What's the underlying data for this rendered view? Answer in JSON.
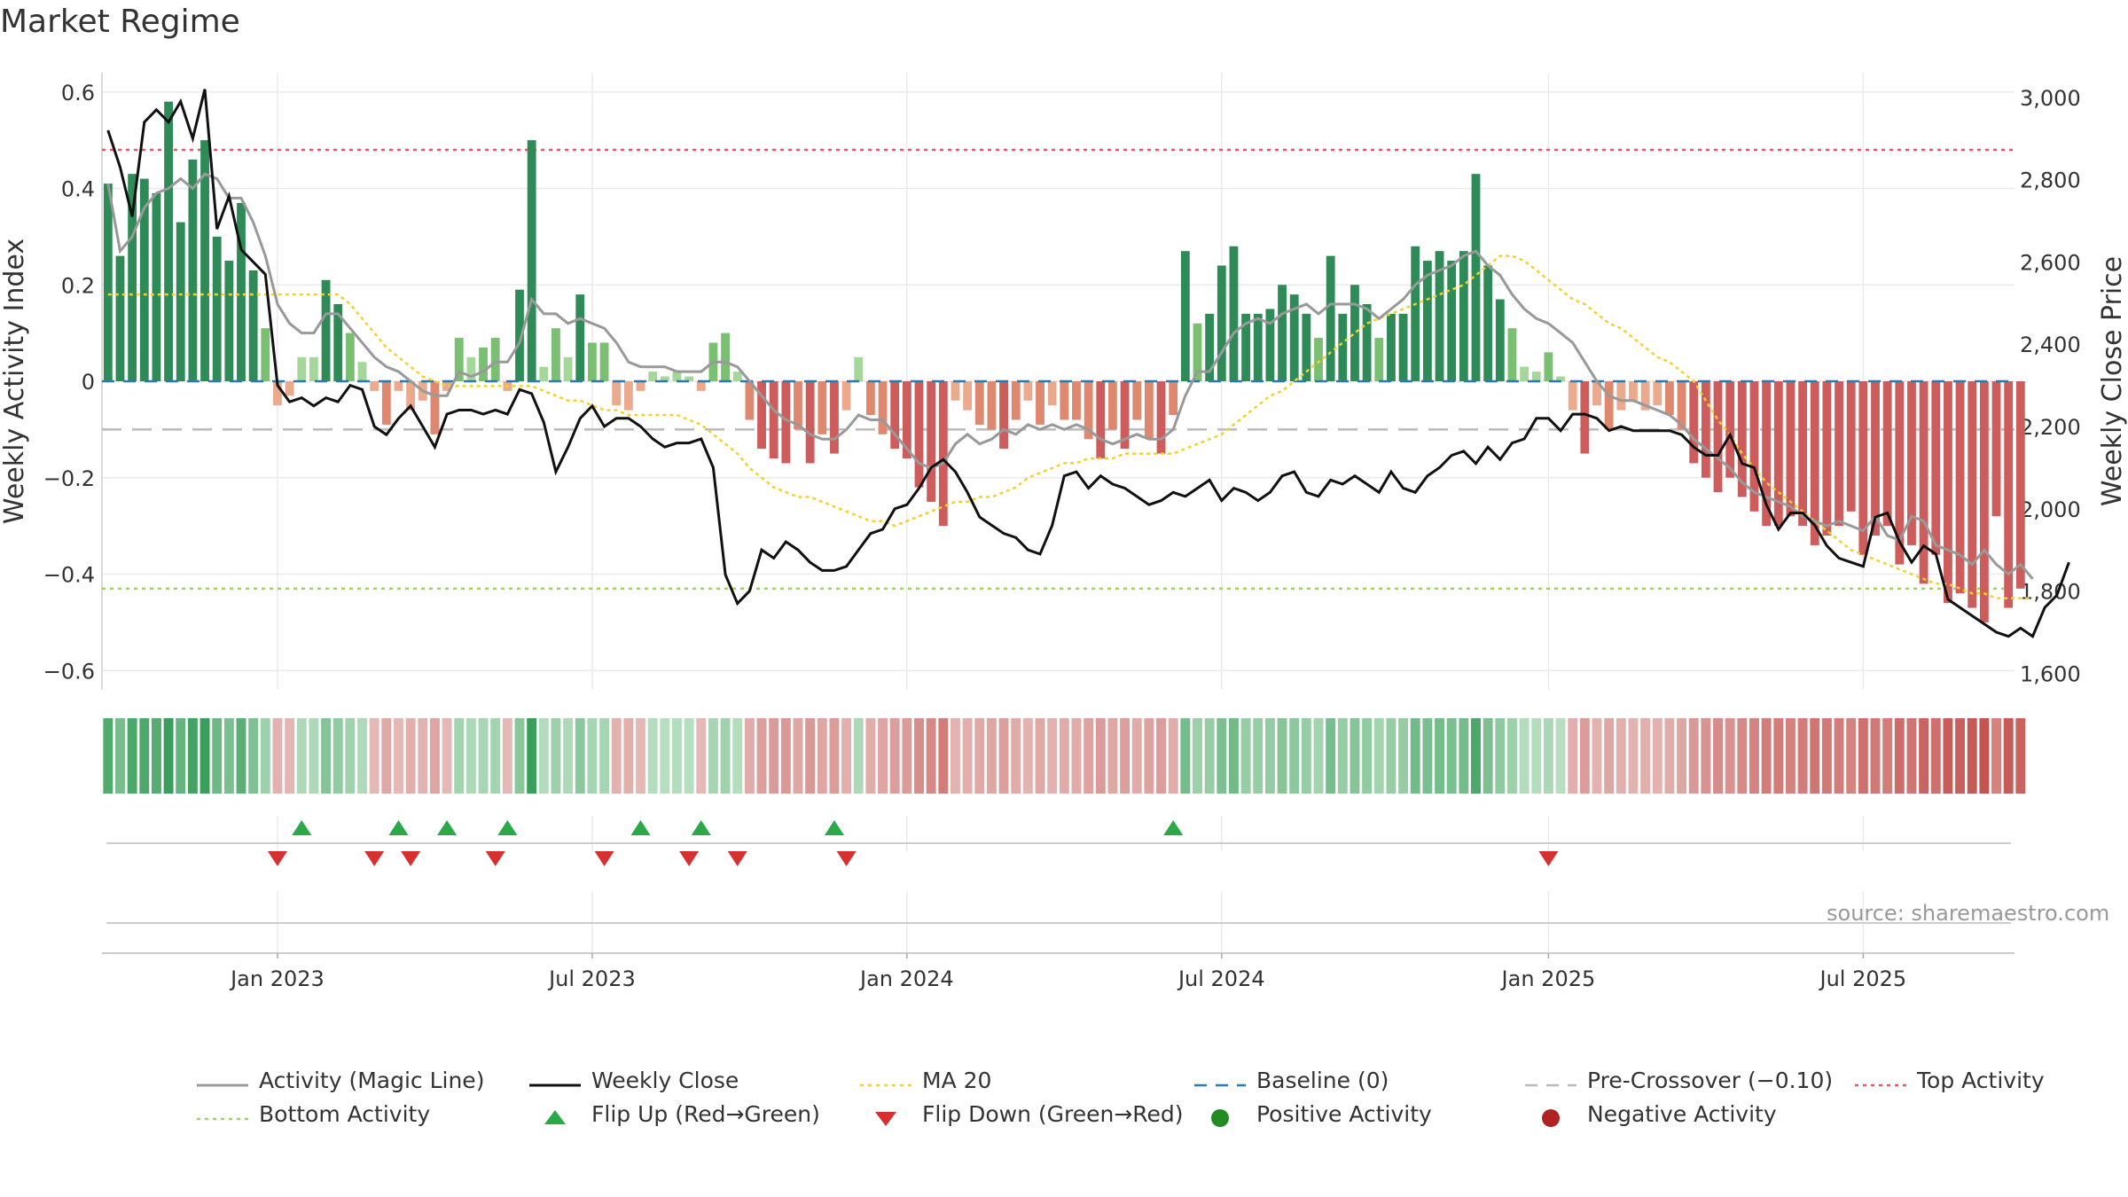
{
  "title": "Market Regime",
  "source": "source: sharemaestro.com",
  "chart_data": {
    "type": "bar",
    "left_axis": {
      "label": "Weekly Activity Index",
      "ylim": [
        -0.64,
        0.64
      ],
      "ticks": [
        0.6,
        0.4,
        0.2,
        0,
        -0.2,
        -0.4,
        -0.6
      ],
      "tick_labels": [
        "0.6",
        "0.4",
        "0.2",
        "0",
        "−0.2",
        "−0.4",
        "−0.6"
      ]
    },
    "right_axis": {
      "label": "Weekly Close Price",
      "ylim": [
        1560,
        3060
      ],
      "ticks": [
        3000,
        2800,
        2600,
        2400,
        2200,
        2000,
        1800,
        1600
      ],
      "tick_labels": [
        "3,000",
        "2,800",
        "2,600",
        "2,400",
        "2,200",
        "2,000",
        "1,800",
        "1,600"
      ]
    },
    "x_axis": {
      "start": "2022-09-26",
      "weeks": 158,
      "ticks": [
        "2023-01-02",
        "2023-07-03",
        "2024-01-01",
        "2024-07-01",
        "2025-01-06",
        "2025-07-07"
      ],
      "tick_labels": [
        "Jan 2023",
        "Jul 2023",
        "Jan 2024",
        "Jul 2024",
        "Jan 2025",
        "Jul 2025"
      ]
    },
    "grid": true,
    "reference_lines": {
      "top_activity": 0.48,
      "bottom_activity": -0.43,
      "pre_crossover": -0.1,
      "baseline": 0
    },
    "activity": [
      0.41,
      0.26,
      0.43,
      0.42,
      0.39,
      0.58,
      0.33,
      0.46,
      0.5,
      0.3,
      0.25,
      0.37,
      0.23,
      0.11,
      -0.05,
      -0.03,
      0.05,
      0.05,
      0.21,
      0.16,
      0.1,
      0.04,
      -0.02,
      -0.09,
      -0.02,
      -0.06,
      -0.04,
      -0.11,
      -0.02,
      0.09,
      0.05,
      0.07,
      0.09,
      -0.02,
      0.19,
      0.5,
      0.03,
      0.11,
      0.05,
      0.18,
      0.08,
      0.08,
      -0.05,
      -0.06,
      -0.02,
      0.02,
      0.01,
      0.02,
      0.01,
      -0.02,
      0.08,
      0.1,
      0.02,
      -0.08,
      -0.14,
      -0.16,
      -0.17,
      -0.1,
      -0.17,
      -0.11,
      -0.15,
      -0.06,
      0.05,
      -0.07,
      -0.11,
      -0.14,
      -0.16,
      -0.22,
      -0.25,
      -0.3,
      -0.04,
      -0.06,
      -0.09,
      -0.1,
      -0.14,
      -0.08,
      -0.04,
      -0.09,
      -0.05,
      -0.08,
      -0.08,
      -0.12,
      -0.16,
      -0.1,
      -0.14,
      -0.08,
      -0.12,
      -0.15,
      -0.07,
      0.27,
      0.12,
      0.14,
      0.24,
      0.28,
      0.14,
      0.14,
      0.15,
      0.2,
      0.18,
      0.14,
      0.09,
      0.26,
      0.14,
      0.2,
      0.16,
      0.09,
      0.14,
      0.14,
      0.28,
      0.25,
      0.27,
      0.25,
      0.27,
      0.43,
      0.24,
      0.17,
      0.11,
      0.03,
      0.02,
      0.06,
      0.01,
      -0.06,
      -0.15,
      -0.05,
      -0.1,
      -0.06,
      -0.04,
      -0.06,
      -0.05,
      -0.07,
      -0.1,
      -0.17,
      -0.2,
      -0.23,
      -0.2,
      -0.24,
      -0.27,
      -0.3,
      -0.3,
      -0.28,
      -0.3,
      -0.34,
      -0.32,
      -0.3,
      -0.27,
      -0.36,
      -0.32,
      -0.3,
      -0.38,
      -0.34,
      -0.42,
      -0.36,
      -0.46,
      -0.44,
      -0.47,
      -0.5,
      -0.28,
      -0.47,
      -0.43
    ],
    "magic_line": [
      0.41,
      0.27,
      0.3,
      0.36,
      0.39,
      0.4,
      0.42,
      0.4,
      0.43,
      0.42,
      0.38,
      0.38,
      0.33,
      0.26,
      0.16,
      0.12,
      0.1,
      0.1,
      0.14,
      0.14,
      0.11,
      0.08,
      0.05,
      0.03,
      0.02,
      0.0,
      -0.02,
      -0.03,
      -0.03,
      0.02,
      0.01,
      0.02,
      0.04,
      0.04,
      0.08,
      0.17,
      0.14,
      0.14,
      0.12,
      0.13,
      0.12,
      0.11,
      0.08,
      0.04,
      0.03,
      0.03,
      0.03,
      0.02,
      0.02,
      0.02,
      0.04,
      0.04,
      0.03,
      0.0,
      -0.03,
      -0.06,
      -0.08,
      -0.09,
      -0.11,
      -0.12,
      -0.12,
      -0.1,
      -0.07,
      -0.08,
      -0.08,
      -0.11,
      -0.14,
      -0.17,
      -0.18,
      -0.17,
      -0.13,
      -0.11,
      -0.13,
      -0.12,
      -0.1,
      -0.11,
      -0.09,
      -0.1,
      -0.09,
      -0.1,
      -0.09,
      -0.1,
      -0.12,
      -0.13,
      -0.12,
      -0.11,
      -0.12,
      -0.12,
      -0.1,
      -0.03,
      0.02,
      0.02,
      0.06,
      0.1,
      0.12,
      0.13,
      0.12,
      0.14,
      0.15,
      0.16,
      0.14,
      0.16,
      0.16,
      0.16,
      0.15,
      0.13,
      0.15,
      0.17,
      0.2,
      0.22,
      0.23,
      0.24,
      0.26,
      0.27,
      0.24,
      0.22,
      0.18,
      0.15,
      0.13,
      0.12,
      0.1,
      0.08,
      0.04,
      0.0,
      -0.03,
      -0.04,
      -0.04,
      -0.05,
      -0.06,
      -0.07,
      -0.09,
      -0.12,
      -0.14,
      -0.16,
      -0.18,
      -0.21,
      -0.23,
      -0.24,
      -0.25,
      -0.26,
      -0.28,
      -0.29,
      -0.3,
      -0.29,
      -0.3,
      -0.31,
      -0.28,
      -0.32,
      -0.33,
      -0.28,
      -0.29,
      -0.34,
      -0.35,
      -0.36,
      -0.38,
      -0.35,
      -0.38,
      -0.4,
      -0.38,
      -0.41
    ],
    "weekly_close": [
      2920,
      2830,
      2710,
      2940,
      2970,
      2940,
      2990,
      2900,
      3020,
      2680,
      2760,
      2630,
      2600,
      2570,
      2300,
      2260,
      2270,
      2250,
      2270,
      2260,
      2300,
      2290,
      2200,
      2180,
      2220,
      2250,
      2200,
      2150,
      2230,
      2240,
      2240,
      2230,
      2240,
      2230,
      2290,
      2280,
      2210,
      2090,
      2150,
      2220,
      2250,
      2200,
      2220,
      2220,
      2200,
      2170,
      2150,
      2160,
      2160,
      2170,
      2100,
      1840,
      1770,
      1800,
      1900,
      1880,
      1920,
      1900,
      1870,
      1850,
      1850,
      1860,
      1900,
      1940,
      1950,
      2000,
      2010,
      2050,
      2100,
      2120,
      2090,
      2040,
      1980,
      1960,
      1940,
      1930,
      1900,
      1890,
      1960,
      2080,
      2090,
      2050,
      2080,
      2060,
      2050,
      2030,
      2010,
      2020,
      2040,
      2030,
      2050,
      2070,
      2020,
      2050,
      2040,
      2020,
      2040,
      2080,
      2090,
      2040,
      2030,
      2070,
      2060,
      2080,
      2060,
      2040,
      2090,
      2050,
      2040,
      2080,
      2100,
      2130,
      2140,
      2110,
      2150,
      2120,
      2160,
      2170,
      2220,
      2220,
      2190,
      2230,
      2230,
      2220,
      2190,
      2200,
      2190,
      2190,
      2190,
      2190,
      2180,
      2150,
      2130,
      2130,
      2180,
      2110,
      2100,
      2010,
      1950,
      1990,
      1990,
      1960,
      1910,
      1880,
      1870,
      1860,
      1980,
      1990,
      1920,
      1870,
      1910,
      1890,
      1780,
      1760,
      1740,
      1720,
      1700,
      1690,
      1710,
      1690,
      1760,
      1790,
      1870
    ],
    "ma20": [
      0.18,
      0.18,
      0.18,
      0.18,
      0.18,
      0.18,
      0.18,
      0.18,
      0.18,
      0.18,
      0.18,
      0.18,
      0.18,
      0.18,
      0.18,
      0.18,
      0.18,
      0.18,
      0.18,
      0.18,
      0.16,
      0.13,
      0.1,
      0.07,
      0.05,
      0.03,
      0.01,
      0.0,
      -0.01,
      -0.01,
      -0.01,
      -0.01,
      -0.01,
      -0.01,
      -0.01,
      -0.01,
      -0.02,
      -0.03,
      -0.04,
      -0.04,
      -0.05,
      -0.06,
      -0.06,
      -0.07,
      -0.07,
      -0.07,
      -0.07,
      -0.07,
      -0.08,
      -0.09,
      -0.11,
      -0.13,
      -0.15,
      -0.18,
      -0.2,
      -0.22,
      -0.23,
      -0.24,
      -0.24,
      -0.25,
      -0.26,
      -0.27,
      -0.28,
      -0.29,
      -0.29,
      -0.3,
      -0.29,
      -0.28,
      -0.27,
      -0.26,
      -0.25,
      -0.25,
      -0.24,
      -0.24,
      -0.23,
      -0.22,
      -0.2,
      -0.19,
      -0.18,
      -0.17,
      -0.17,
      -0.16,
      -0.16,
      -0.16,
      -0.15,
      -0.15,
      -0.15,
      -0.15,
      -0.15,
      -0.14,
      -0.13,
      -0.12,
      -0.11,
      -0.09,
      -0.07,
      -0.05,
      -0.03,
      -0.02,
      0.0,
      0.02,
      0.04,
      0.06,
      0.08,
      0.1,
      0.12,
      0.13,
      0.14,
      0.15,
      0.16,
      0.17,
      0.18,
      0.19,
      0.2,
      0.22,
      0.24,
      0.26,
      0.26,
      0.25,
      0.23,
      0.21,
      0.19,
      0.17,
      0.16,
      0.14,
      0.12,
      0.11,
      0.09,
      0.07,
      0.05,
      0.04,
      0.02,
      0.0,
      -0.04,
      -0.08,
      -0.11,
      -0.15,
      -0.18,
      -0.21,
      -0.23,
      -0.25,
      -0.27,
      -0.29,
      -0.31,
      -0.33,
      -0.35,
      -0.36,
      -0.37,
      -0.38,
      -0.39,
      -0.4,
      -0.41,
      -0.42,
      -0.42,
      -0.43,
      -0.44,
      -0.44,
      -0.45,
      -0.45,
      -0.45,
      -0.45
    ],
    "flip_up_weeks": [
      16,
      24,
      28,
      33,
      44,
      49,
      60,
      88
    ],
    "flip_down_weeks": [
      14,
      22,
      25,
      32,
      41,
      48,
      52,
      61,
      119
    ],
    "legend": [
      {
        "label": "Activity (Magic Line)",
        "marker": "line",
        "color": "#999999"
      },
      {
        "label": "Weekly Close",
        "marker": "line",
        "color": "#111111"
      },
      {
        "label": "MA 20",
        "marker": "dotted",
        "color": "#f2d22e"
      },
      {
        "label": "Baseline (0)",
        "marker": "dashed",
        "color": "#2a7ab0"
      },
      {
        "label": "Pre-Crossover (−0.10)",
        "marker": "dashed",
        "color": "#bbbbbb"
      },
      {
        "label": "Top Activity",
        "marker": "dotted",
        "color": "#e05a6a"
      },
      {
        "label": "Bottom Activity",
        "marker": "dotted",
        "color": "#9cd46a"
      },
      {
        "label": "Flip Up (Red→Green)",
        "marker": "triangle-up",
        "color": "#2aa84a"
      },
      {
        "label": "Flip Down (Green→Red)",
        "marker": "triangle-down",
        "color": "#d63030"
      },
      {
        "label": "Positive Activity",
        "marker": "circle",
        "color": "#228b22"
      },
      {
        "label": "Negative Activity",
        "marker": "circle",
        "color": "#b22222"
      }
    ]
  }
}
